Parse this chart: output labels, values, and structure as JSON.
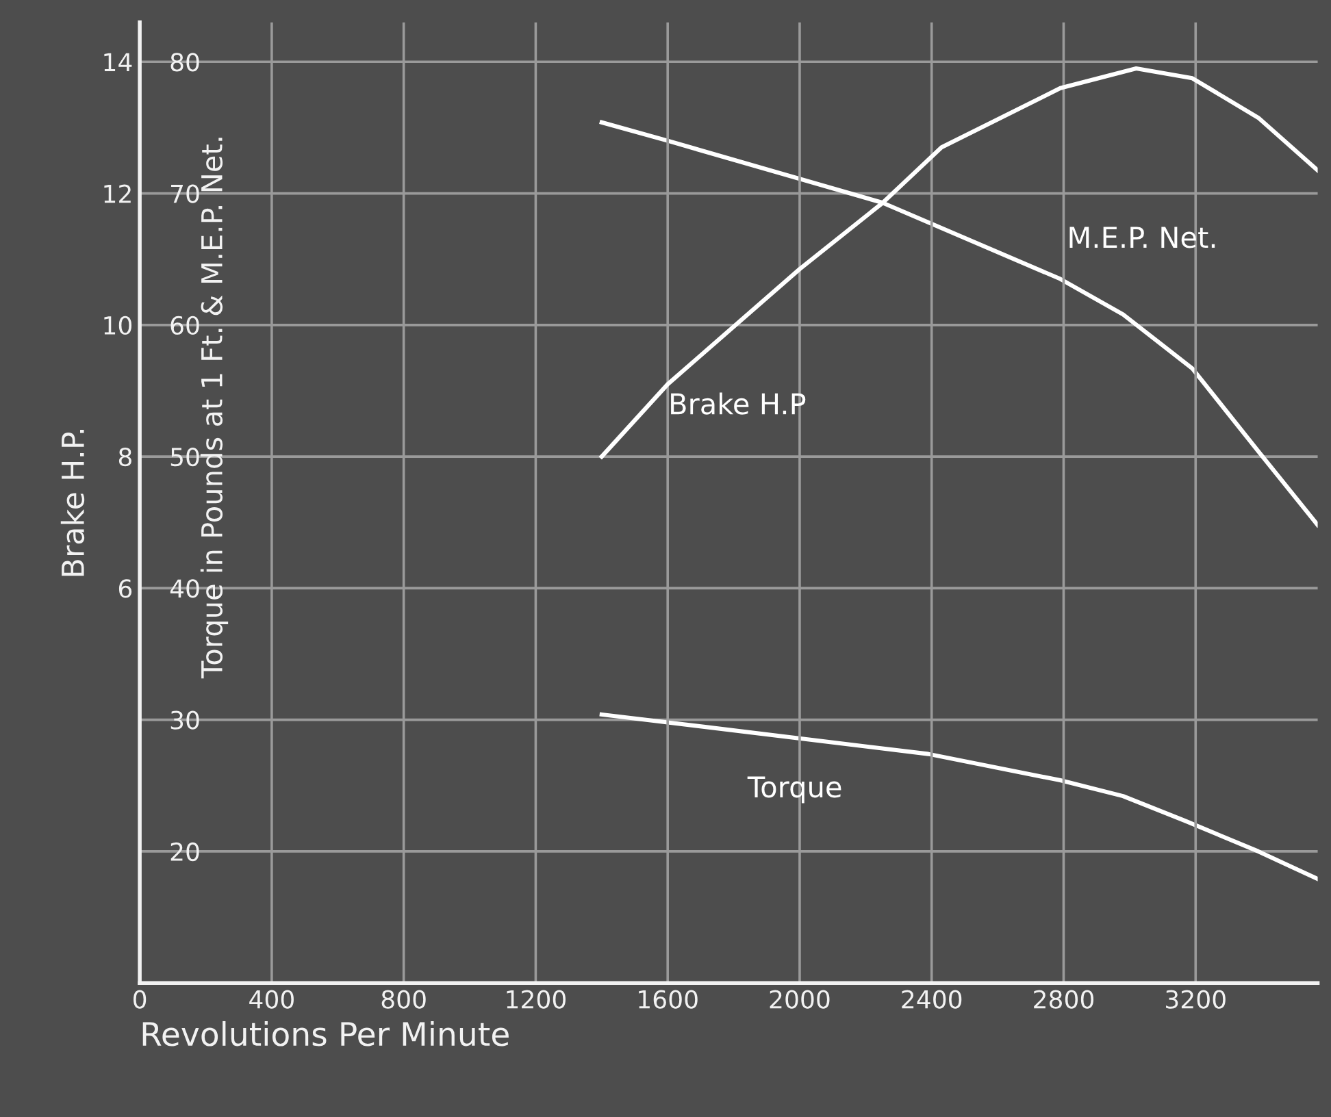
{
  "chart_data": {
    "type": "line",
    "xlabel": "Revolutions Per Minute",
    "ylabel": "Brake H.P.",
    "y2label": "Torque in Pounds at 1 Ft. & M.E.P. Net.",
    "xlim": [
      0,
      3570
    ],
    "xticks": [
      0,
      400,
      800,
      1200,
      1600,
      2000,
      2400,
      2800,
      3200
    ],
    "ylim": [
      0,
      14.6
    ],
    "yticks": [
      6,
      8,
      10,
      12,
      14
    ],
    "y2lim": [
      10,
      83
    ],
    "y2ticks": [
      20,
      30,
      40,
      50,
      60,
      70,
      80
    ],
    "grid": true,
    "legend": false,
    "marker": "none",
    "line_style": "solid",
    "series": [
      {
        "name": "Brake H.P",
        "color": "#ffffff",
        "x": [
          1400,
          1600,
          2000,
          2250,
          2430,
          2790,
          3020,
          3190,
          3390,
          3570
        ],
        "values": [
          8.0,
          9.1,
          10.85,
          11.85,
          12.7,
          13.6,
          13.9,
          13.75,
          13.15,
          12.35
        ]
      },
      {
        "name": "M.E.P. Net.",
        "color": "#ffffff",
        "axis": "y2",
        "x": [
          1400,
          1600,
          2250,
          2790,
          2980,
          3190,
          3390,
          3570
        ],
        "values": [
          75.4,
          74.0,
          69.3,
          63.5,
          60.8,
          56.7,
          50.4,
          44.8
        ]
      },
      {
        "name": "Torque",
        "color": "#ffffff",
        "axis": "y2",
        "x": [
          1400,
          1600,
          2390,
          2790,
          2980,
          3170,
          3390,
          3570
        ],
        "values": [
          30.4,
          29.8,
          27.4,
          25.4,
          24.2,
          22.3,
          20.0,
          17.9
        ]
      }
    ]
  }
}
